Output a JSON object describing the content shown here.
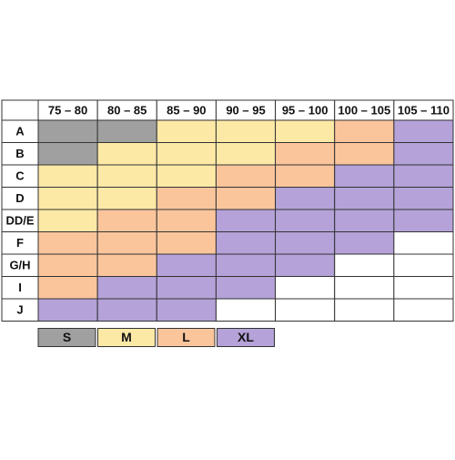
{
  "table": {
    "columns": [
      "75 – 80",
      "80 – 85",
      "85 – 90",
      "90 – 95",
      "95 – 100",
      "100 – 105",
      "105 – 110"
    ],
    "rows": [
      {
        "label": "A",
        "cells": [
          "S",
          "S",
          "M",
          "M",
          "M",
          "L",
          "XL"
        ]
      },
      {
        "label": "B",
        "cells": [
          "S",
          "M",
          "M",
          "M",
          "L",
          "L",
          "XL"
        ]
      },
      {
        "label": "C",
        "cells": [
          "M",
          "M",
          "M",
          "L",
          "L",
          "XL",
          "XL"
        ]
      },
      {
        "label": "D",
        "cells": [
          "M",
          "M",
          "L",
          "L",
          "XL",
          "XL",
          "XL"
        ]
      },
      {
        "label": "DD/E",
        "cells": [
          "M",
          "L",
          "L",
          "XL",
          "XL",
          "XL",
          "XL"
        ]
      },
      {
        "label": "F",
        "cells": [
          "L",
          "L",
          "L",
          "XL",
          "XL",
          "XL",
          null
        ]
      },
      {
        "label": "G/H",
        "cells": [
          "L",
          "L",
          "XL",
          "XL",
          "XL",
          null,
          null
        ]
      },
      {
        "label": "I",
        "cells": [
          "L",
          "XL",
          "XL",
          "XL",
          null,
          null,
          null
        ]
      },
      {
        "label": "J",
        "cells": [
          "XL",
          "XL",
          "XL",
          null,
          null,
          null,
          null
        ]
      }
    ]
  },
  "legend": [
    {
      "label": "S",
      "color": "#a0a0a0"
    },
    {
      "label": "M",
      "color": "#fde9a6"
    },
    {
      "label": "L",
      "color": "#fbc59c"
    },
    {
      "label": "XL",
      "color": "#b4a2d8"
    }
  ]
}
